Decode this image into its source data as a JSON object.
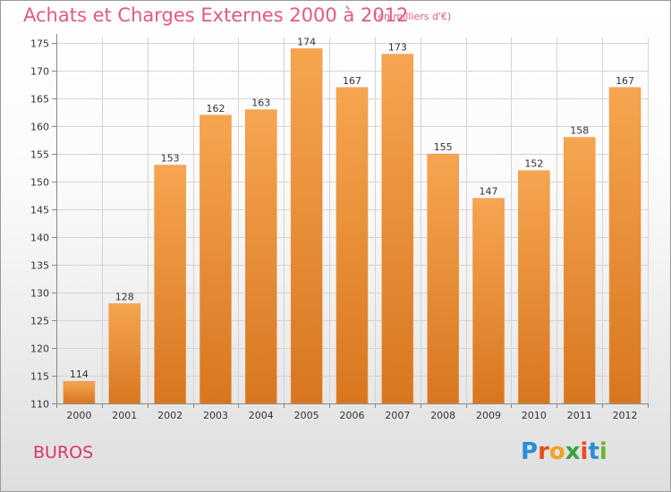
{
  "header": {
    "title": "Achats et Charges Externes 2000 à 2012",
    "subtitle": "(en milliers d'€)"
  },
  "footer": {
    "place": "BUROS",
    "logo_letters": [
      "P",
      "r",
      "o",
      "x",
      "i",
      "t",
      "i"
    ],
    "logo_colors": [
      "#2a8fd6",
      "#e84e1b",
      "#f4a11d",
      "#3aa13b",
      "#e84e1b",
      "#2a8fd6",
      "#6bb42c"
    ]
  },
  "chart_data": {
    "type": "bar",
    "categories": [
      "2000",
      "2001",
      "2002",
      "2003",
      "2004",
      "2005",
      "2006",
      "2007",
      "2008",
      "2009",
      "2010",
      "2011",
      "2012"
    ],
    "values": [
      114,
      128,
      153,
      162,
      163,
      174,
      167,
      173,
      155,
      147,
      152,
      158,
      167
    ],
    "data_labels": [
      "114",
      "128",
      "153",
      "162",
      "163",
      "174",
      "167",
      "173",
      "155",
      "147",
      "152",
      "158",
      "167"
    ],
    "ylim": [
      110,
      176
    ],
    "yticks": [
      110,
      115,
      120,
      125,
      130,
      135,
      140,
      145,
      150,
      155,
      160,
      165,
      170,
      175
    ],
    "grid": true,
    "bar_color_top": "#f6a550",
    "bar_color_bottom": "#d8761f"
  }
}
